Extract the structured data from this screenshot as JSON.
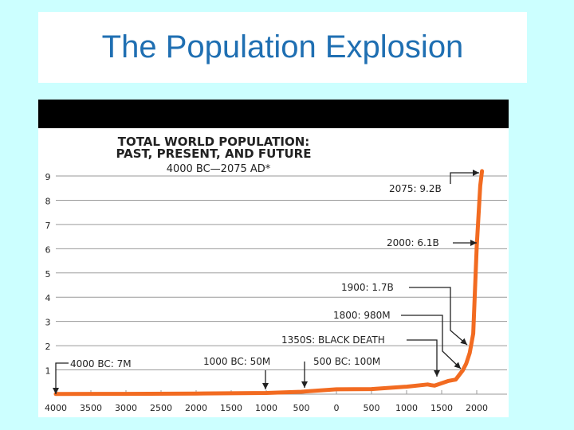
{
  "slide": {
    "title": "The Population Explosion"
  },
  "colors": {
    "background": "#ccffff",
    "title": "#1f6fb2",
    "line": "#f26b21",
    "grid": "#9a9a9a"
  },
  "chart_data": {
    "type": "line",
    "title_line1": "TOTAL WORLD POPULATION:",
    "title_line2": "PAST, PRESENT, AND FUTURE",
    "subtitle": "4000 BC—2075 AD*",
    "xlabel": "",
    "ylabel": "",
    "x_ticks": [
      {
        "value": -4000,
        "label": "4000"
      },
      {
        "value": -3500,
        "label": "3500"
      },
      {
        "value": -3000,
        "label": "3000"
      },
      {
        "value": -2500,
        "label": "2500"
      },
      {
        "value": -2000,
        "label": "2000"
      },
      {
        "value": -1500,
        "label": "1500"
      },
      {
        "value": -1000,
        "label": "1000"
      },
      {
        "value": -500,
        "label": "500"
      },
      {
        "value": 0,
        "label": "0"
      },
      {
        "value": 500,
        "label": "500"
      },
      {
        "value": 1000,
        "label": "1000"
      },
      {
        "value": 1500,
        "label": "1500"
      },
      {
        "value": 2000,
        "label": "2000"
      }
    ],
    "y_ticks": [
      1,
      2,
      3,
      4,
      5,
      6,
      7,
      8,
      9
    ],
    "xlim": [
      -4000,
      2075
    ],
    "ylim": [
      0,
      9.5
    ],
    "grid": true,
    "series": [
      {
        "x": [
          -4000,
          -3000,
          -2000,
          -1000,
          -500,
          0,
          500,
          1000,
          1300,
          1350,
          1400,
          1500,
          1600,
          1700,
          1800,
          1850,
          1900,
          1950,
          2000,
          2050,
          2075
        ],
        "values": [
          0.007,
          0.014,
          0.027,
          0.05,
          0.1,
          0.2,
          0.21,
          0.31,
          0.4,
          0.37,
          0.35,
          0.45,
          0.55,
          0.6,
          0.98,
          1.26,
          1.7,
          2.5,
          6.1,
          8.6,
          9.2
        ]
      }
    ],
    "annotations": [
      {
        "label": "2075: 9.2B",
        "x": 2075,
        "y": 9.2
      },
      {
        "label": "2000: 6.1B",
        "x": 2000,
        "y": 6.1
      },
      {
        "label": "1900: 1.7B",
        "x": 1900,
        "y": 1.7
      },
      {
        "label": "1800: 980M",
        "x": 1800,
        "y": 0.98
      },
      {
        "label": "1350S: BLACK DEATH",
        "x": 1350,
        "y": 0.37
      },
      {
        "label": "4000 BC: 7M",
        "x": -4000,
        "y": 0.007
      },
      {
        "label": "1000 BC: 50M",
        "x": -1000,
        "y": 0.05
      },
      {
        "label": "500 BC: 100M",
        "x": -500,
        "y": 0.1
      }
    ]
  }
}
